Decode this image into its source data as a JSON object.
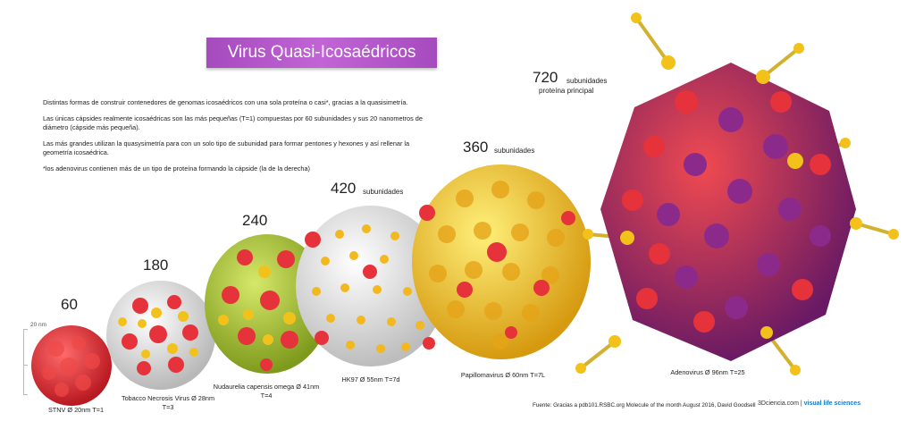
{
  "title": "Virus Quasi-Icosaédricos",
  "intro": [
    "Distintas formas de construir contenedores de genomas icosaédricos con una sola proteína o casi*, gracias a la quasisimetría.",
    "Las únicas cápsides realmente icosaédricas son las más pequeñas (T=1) compuestas por 60 subunidades y sus 20 nanometros de diámetro (cápside más pequeña).",
    "Las más grandes utilizan la quasysimetría para con un solo tipo de subunidad para formar pentones y hexones y así rellenar la geometría icosaédrica.",
    "*los adenovirus contienen más de un tipo de proteína formando la cápside (la de la derecha)"
  ],
  "scale": "20 nm",
  "viruses": [
    {
      "count": "60",
      "caption_line1": "STNV Ø 20nm  T=1",
      "caption_line2": "",
      "palette": [
        "#e8323a",
        "#ff5a5a"
      ]
    },
    {
      "count": "180",
      "caption_line1": "Tobacco Necrosis Virus Ø 28nm",
      "caption_line2": "T=3",
      "palette": [
        "#e8e8e8",
        "#e6323a",
        "#f2c21a"
      ]
    },
    {
      "count": "240",
      "caption_line1": "Nudaurelia capensis omega Ø 41nm",
      "caption_line2": "T=4",
      "palette": [
        "#9cbf2a",
        "#f2c21a",
        "#e6323a"
      ]
    },
    {
      "count": "420",
      "subunits": "subunidades",
      "caption_line1": "HK97  Ø 55nm  T=7d",
      "caption_line2": "",
      "palette": [
        "#f2f2f2",
        "#f2b820",
        "#e6323a"
      ]
    },
    {
      "count": "360",
      "subunits": "subunidades",
      "caption_line1": "Papillomavirus Ø 60nm  T=7L",
      "caption_line2": "",
      "palette": [
        "#f5d21a",
        "#e6a418",
        "#e6323a"
      ]
    },
    {
      "count": "720",
      "subunits": "subunidades",
      "protein": "proteína principal",
      "caption_line1": "Adenovirus  Ø 96nm  T=25",
      "caption_line2": "",
      "palette": [
        "#d8282f",
        "#8c2a8c",
        "#f2c21a"
      ]
    }
  ],
  "source": "Fuente: Gracias a pdb101.RSBC.org Molecule of the month August 2016, David Goodsell",
  "brand": {
    "name": "3Dciencia.com",
    "tagline": "visual life sciences"
  }
}
